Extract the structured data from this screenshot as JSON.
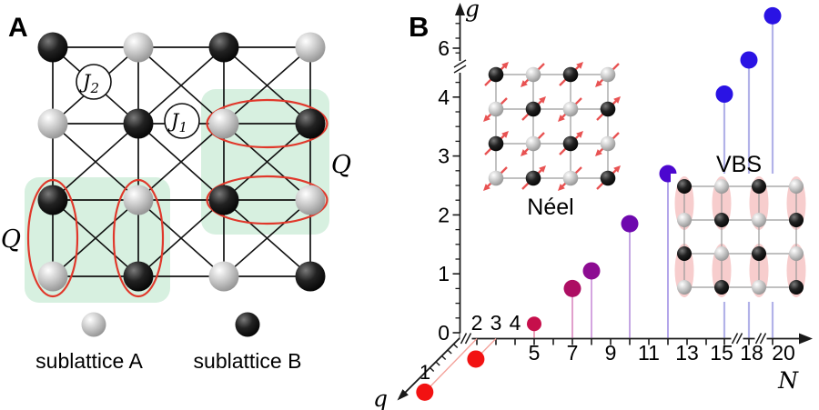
{
  "figure": {
    "panelA": {
      "label": "A",
      "j1_label": {
        "base": "J",
        "sub": "1"
      },
      "j2_label": {
        "base": "J",
        "sub": "2"
      },
      "q_label_left": "Q",
      "q_label_right": "Q",
      "legend": {
        "a_label": "sublattice A",
        "b_label": "sublattice B"
      },
      "lattice": {
        "rows": 4,
        "cols": 4,
        "pattern": "checkerboard; sublattice A = light gray spheres, sublattice B = black spheres",
        "bonds": "nearest-neighbor J1 on square edges, next-nearest J2 on cell diagonals",
        "q_regions": "two green-shaded 2x2 plaquettes, each with two red singlet ellipses"
      }
    },
    "panelB": {
      "label": "B",
      "g_axis": {
        "label": "g",
        "ticks": [
          {
            "v": 0,
            "label": "0"
          },
          {
            "v": 1,
            "label": "1"
          },
          {
            "v": 2,
            "label": "2"
          },
          {
            "v": 3,
            "label": "3"
          },
          {
            "v": 4,
            "label": "4"
          },
          {
            "v": 6,
            "label": "6"
          }
        ]
      },
      "n_axis": {
        "label": "N",
        "ticks": [
          {
            "v": 2,
            "label": "2",
            "above": true
          },
          {
            "v": 3,
            "label": "3",
            "above": true
          },
          {
            "v": 4,
            "label": "4",
            "above": true
          },
          {
            "v": 5,
            "label": "5",
            "above": false
          },
          {
            "v": 7,
            "label": "7",
            "above": false
          },
          {
            "v": 9,
            "label": "9",
            "above": false
          },
          {
            "v": 11,
            "label": "11",
            "above": false
          },
          {
            "v": 13,
            "label": "13",
            "above": false
          },
          {
            "v": 15,
            "label": "15",
            "above": false
          },
          {
            "v": 18,
            "label": "18",
            "above": false
          },
          {
            "v": 20,
            "label": "20",
            "above": false
          }
        ]
      },
      "q_axis": {
        "label": "q",
        "tick_label": "1"
      },
      "neel_label": "Néel",
      "vbs_label": "VBS"
    }
  },
  "chart_data": {
    "type": "scatter",
    "title": "",
    "xlabel": "N",
    "ylabel": "g",
    "zlabel": "q",
    "x_axis": {
      "ticks_labeled": [
        2,
        3,
        4,
        5,
        7,
        9,
        11,
        13,
        15,
        18,
        20
      ],
      "minor_ticks": [
        6,
        8,
        10,
        12,
        14
      ],
      "breaks": [
        "between origin and 2",
        "between 15 and 18",
        "between 18 and 20"
      ],
      "arrow": true
    },
    "y_axis": {
      "ticks_labeled": [
        0,
        1,
        2,
        3,
        4,
        6
      ],
      "break_between": [
        4,
        6
      ],
      "arrow": true
    },
    "q_axis": {
      "ticks_labeled": [
        1
      ],
      "direction": "toward lower-left, 3D perspective"
    },
    "points": [
      {
        "N": 5,
        "g": 0.15,
        "color": "#c60f4b",
        "stem": "#e89bb4"
      },
      {
        "N": 7,
        "g": 0.75,
        "color": "#ad0e63",
        "stem": "#de95c6"
      },
      {
        "N": 8,
        "g": 1.05,
        "color": "#8d0c92",
        "stem": "#d09bdc"
      },
      {
        "N": 10,
        "g": 1.85,
        "color": "#6e08ae",
        "stem": "#bd9ce0"
      },
      {
        "N": 12,
        "g": 2.7,
        "color": "#4c07cf",
        "stem": "#ab9ce8"
      },
      {
        "N": 15,
        "g": 4.05,
        "color": "#2a13e4",
        "stem": "#b2b2e8"
      },
      {
        "N": 18,
        "g": 5.8,
        "color": "#2a13e4",
        "stem": "#b2b2e8"
      },
      {
        "N": 20,
        "g": 6.55,
        "color": "#2a13e4",
        "stem": "#b2b2e8"
      }
    ],
    "q_points": [
      {
        "N": 2,
        "q": 2.2,
        "g": 0,
        "color": "#f21212"
      },
      {
        "N": 3,
        "q": 0.85,
        "g": 0,
        "color": "#f21212"
      }
    ],
    "annotations": [
      "Néel",
      "VBS"
    ],
    "legend_position": "none",
    "grid": false
  },
  "colors": {
    "plaquette_fill": "#d7f0e0",
    "ellipse_stroke": "#e0382b",
    "dimer_fill": "#f7cdcd",
    "spin_arrow": "#e85252",
    "bond": "#111111",
    "axis": "#1a1a1a",
    "inset_line": "#9a9a9a",
    "q_point": "#f21212",
    "q_line": "#f4a29b",
    "sphere_gray": "#c6c6c6",
    "sphere_black": "#000000"
  }
}
